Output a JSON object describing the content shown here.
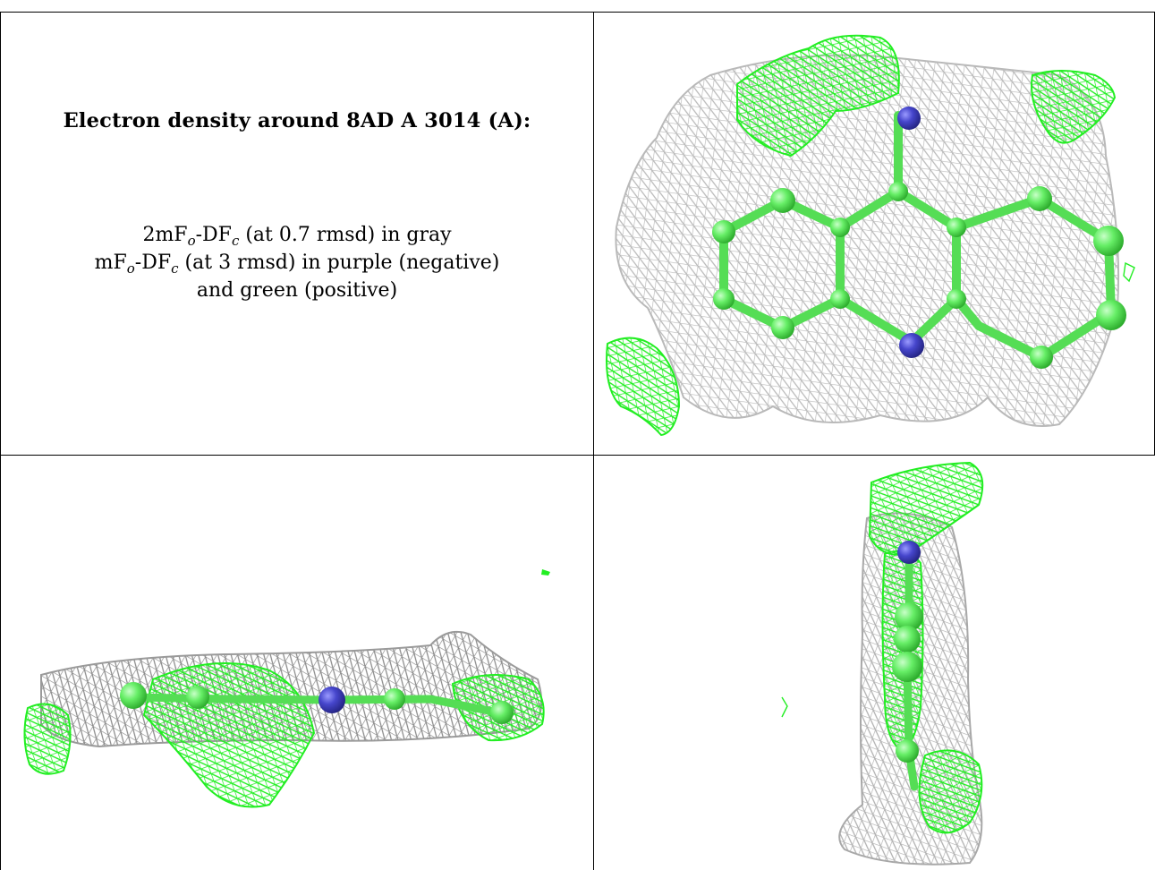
{
  "panel_text": {
    "title": "Electron density around 8AD A 3014 (A):",
    "line1": {
      "pre": "2mF",
      "sub1": "o",
      "mid": "-DF",
      "sub2": "c",
      "post": " (at 0.7 rmsd) in gray"
    },
    "line2": {
      "pre": "mF",
      "sub1": "o",
      "mid": "-DF",
      "sub2": "c",
      "post": " (at 3 rmsd) in purple (negative)"
    },
    "line3": "and green (positive)"
  },
  "colors": {
    "gray_mesh": "#b9b9b9",
    "dark_mesh": "#6e6e6e",
    "green_mesh": "#22ee22",
    "carbon_green": "#66ee66",
    "nitrogen_blue": "#4646cc",
    "border": "#000000"
  },
  "views": [
    {
      "name": "top-view",
      "atoms": [
        "carbon",
        "nitrogen"
      ]
    },
    {
      "name": "side-view",
      "atoms": [
        "carbon",
        "nitrogen"
      ]
    },
    {
      "name": "edge-view",
      "atoms": [
        "carbon",
        "nitrogen"
      ]
    }
  ]
}
